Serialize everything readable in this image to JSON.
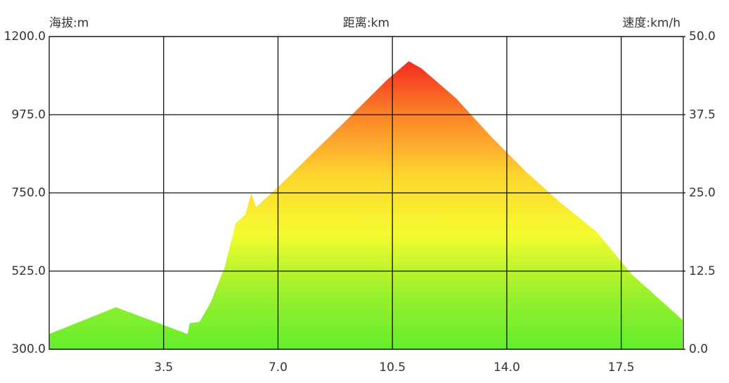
{
  "chart_data": {
    "type": "area",
    "ylabel": "海拔:m",
    "xlabel": "距离:km",
    "y2label": "速度:km/h",
    "x": [
      0,
      2.04,
      4.23,
      4.3,
      4.6,
      4.94,
      5.37,
      5.7,
      6.0,
      6.18,
      6.33,
      7.09,
      8.16,
      9.23,
      10.31,
      11.0,
      11.38,
      12.45,
      13.53,
      14.6,
      15.68,
      16.75,
      17.82,
      18.9,
      19.37
    ],
    "values": [
      344,
      421,
      344,
      375,
      379,
      435,
      537,
      662,
      688,
      749,
      709,
      775,
      874,
      972,
      1073,
      1129,
      1109,
      1022,
      911,
      810,
      719,
      638,
      516,
      425,
      385
    ],
    "colors": [
      "#f52a1e",
      "#fb8a2a",
      "#fdd62e",
      "#f5fb2e",
      "#9cf02c",
      "#62ee2c"
    ],
    "xlim": [
      0,
      19.4
    ],
    "xticks": [
      3.5,
      {
        "value": 7,
        "label": "7.0"
      },
      10.5,
      {
        "value": 14,
        "label": "14.0"
      },
      17.5
    ],
    "ylim": [
      300,
      1200
    ],
    "yticks": [
      {
        "value": 300,
        "label": "300.0"
      },
      {
        "value": 525,
        "label": "525.0"
      },
      {
        "value": 750,
        "label": "750.0"
      },
      {
        "value": 975,
        "label": "975.0"
      },
      {
        "value": 1200,
        "label": "1200.0"
      }
    ],
    "y2lim": [
      0,
      50
    ],
    "y2ticks": [
      {
        "value": 0,
        "label": "0.0"
      },
      12.5,
      {
        "value": 25,
        "label": "25.0"
      },
      37.5,
      {
        "value": 50,
        "label": "50.0"
      }
    ],
    "grid": true
  }
}
